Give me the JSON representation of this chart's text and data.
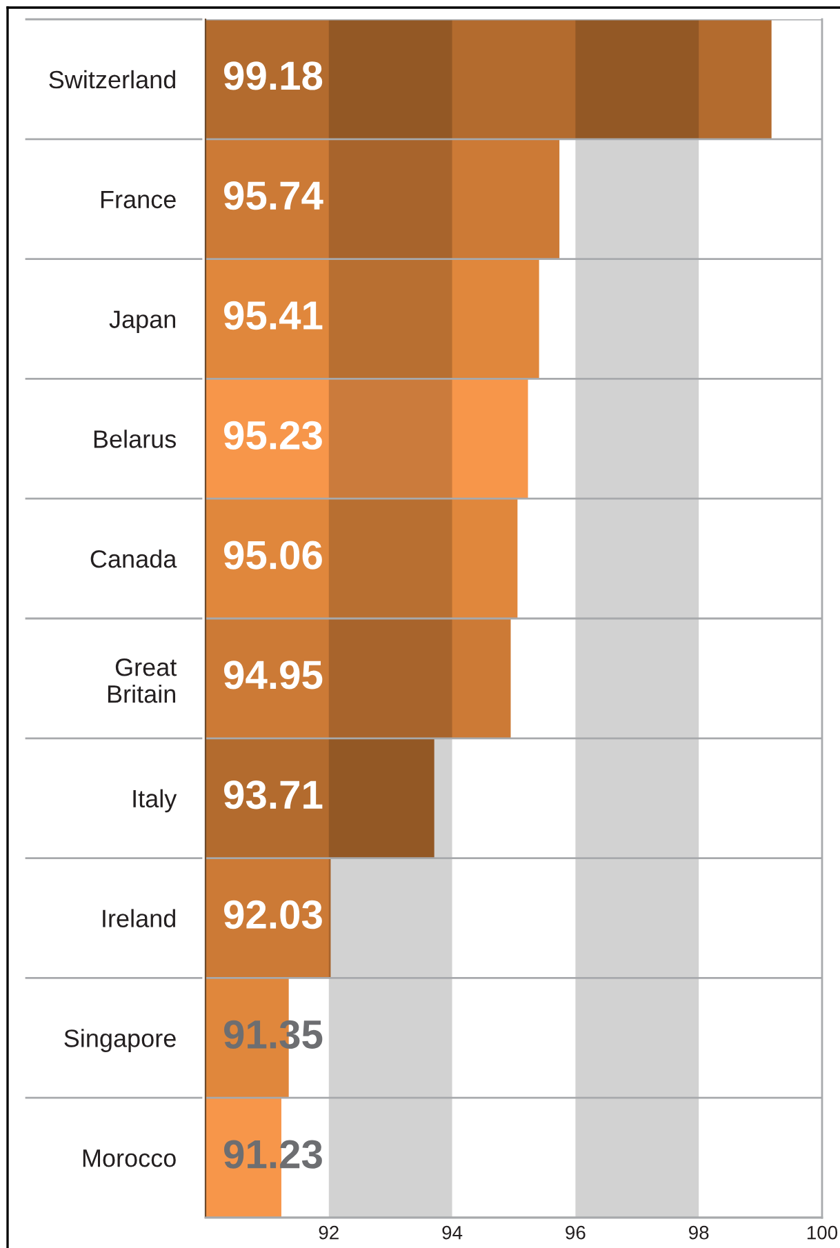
{
  "chart_data": {
    "type": "bar",
    "orientation": "horizontal",
    "categories": [
      "Switzerland",
      "France",
      "Japan",
      "Belarus",
      "Canada",
      "Great\nBritain",
      "Italy",
      "Ireland",
      "Singapore",
      "Morocco"
    ],
    "values": [
      99.18,
      95.74,
      95.41,
      95.23,
      95.06,
      94.95,
      93.71,
      92.03,
      91.35,
      91.23
    ],
    "colors": [
      "#b36b2e",
      "#cc7a36",
      "#e0873c",
      "#f7964a",
      "#e0873c",
      "#cc7a36",
      "#b36b2e",
      "#cc7a36",
      "#e0873c",
      "#f7964a"
    ],
    "xlim": [
      90,
      100
    ],
    "xticks": [
      92,
      94,
      96,
      98,
      100
    ],
    "bands": [
      {
        "axis": "x",
        "from": 92,
        "to": 94,
        "color": "#d1d2d4"
      },
      {
        "axis": "x",
        "from": 96,
        "to": 98,
        "color": "#d1d2d4"
      }
    ],
    "data_labels": true,
    "grid": "y"
  }
}
